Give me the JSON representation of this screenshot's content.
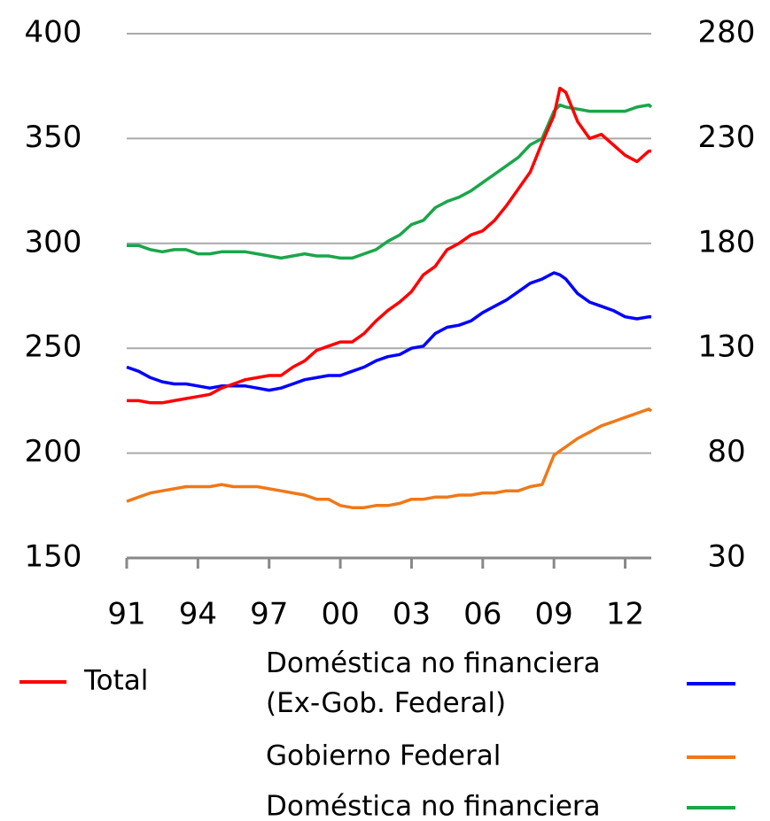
{
  "chart_data": {
    "type": "line",
    "x": [
      1991,
      1991.5,
      1992,
      1992.5,
      1993,
      1993.5,
      1994,
      1994.5,
      1995,
      1995.5,
      1996,
      1996.5,
      1997,
      1997.5,
      1998,
      1998.5,
      1999,
      1999.5,
      2000,
      2000.5,
      2001,
      2001.5,
      2002,
      2002.5,
      2003,
      2003.5,
      2004,
      2004.5,
      2005,
      2005.5,
      2006,
      2006.5,
      2007,
      2007.5,
      2008,
      2008.5,
      2009,
      2009.25,
      2009.5,
      2010,
      2010.5,
      2011,
      2011.5,
      2012,
      2012.5,
      2013,
      2013.1
    ],
    "xlim": [
      1991,
      2013.1
    ],
    "xticks": [
      {
        "value": 1991,
        "label": "91"
      },
      {
        "value": 1994,
        "label": "94"
      },
      {
        "value": 1997,
        "label": "97"
      },
      {
        "value": 2000,
        "label": "00"
      },
      {
        "value": 2003,
        "label": "03"
      },
      {
        "value": 2006,
        "label": "06"
      },
      {
        "value": 2009,
        "label": "09"
      },
      {
        "value": 2012,
        "label": "12"
      }
    ],
    "ylim": [
      150,
      400
    ],
    "yticks": [
      150,
      200,
      250,
      300,
      350,
      400
    ],
    "y2lim": [
      30,
      280
    ],
    "y2ticks": [
      30,
      80,
      130,
      180,
      230,
      280
    ],
    "grid": true,
    "series": [
      {
        "name": "Total",
        "color": "#ff0000",
        "values": [
          225,
          225,
          224,
          224,
          225,
          226,
          227,
          228,
          231,
          233,
          235,
          236,
          237,
          237,
          241,
          244,
          249,
          251,
          253,
          253,
          257,
          263,
          268,
          272,
          277,
          285,
          289,
          297,
          300,
          304,
          306,
          311,
          318,
          326,
          334,
          348,
          361,
          374,
          372,
          358,
          350,
          352,
          347,
          342,
          339,
          344,
          344
        ]
      },
      {
        "name": "Doméstica no financiera\n(Ex-Gob. Federal)",
        "color": "#0000ff",
        "axis": "y2",
        "values": [
          121,
          119,
          116,
          114,
          113,
          113,
          112,
          111,
          112,
          112,
          112,
          111,
          110,
          111,
          113,
          115,
          116,
          117,
          117,
          119,
          121,
          124,
          126,
          127,
          130,
          131,
          137,
          140,
          141,
          143,
          147,
          150,
          153,
          157,
          161,
          163,
          166,
          165,
          163,
          156,
          152,
          150,
          148,
          145,
          144,
          145,
          145
        ]
      },
      {
        "name": "Gobierno Federal",
        "color": "#f07818",
        "axis": "y2",
        "values": [
          57,
          59,
          61,
          62,
          63,
          64,
          64,
          64,
          65,
          64,
          64,
          64,
          63,
          62,
          61,
          60,
          58,
          58,
          55,
          54,
          54,
          55,
          55,
          56,
          58,
          58,
          59,
          59,
          60,
          60,
          61,
          61,
          62,
          62,
          64,
          65,
          79,
          81,
          83,
          87,
          90,
          93,
          95,
          97,
          99,
          101,
          100
        ]
      },
      {
        "name": "Doméstica no financiera",
        "color": "#1aa64a",
        "axis": "y2",
        "values": [
          179,
          179,
          177,
          176,
          177,
          177,
          175,
          175,
          176,
          176,
          176,
          175,
          174,
          173,
          174,
          175,
          174,
          174,
          173,
          173,
          175,
          177,
          181,
          184,
          189,
          191,
          197,
          200,
          202,
          205,
          209,
          213,
          217,
          221,
          227,
          230,
          243,
          246,
          245,
          244,
          243,
          243,
          243,
          243,
          245,
          246,
          245
        ]
      }
    ]
  }
}
